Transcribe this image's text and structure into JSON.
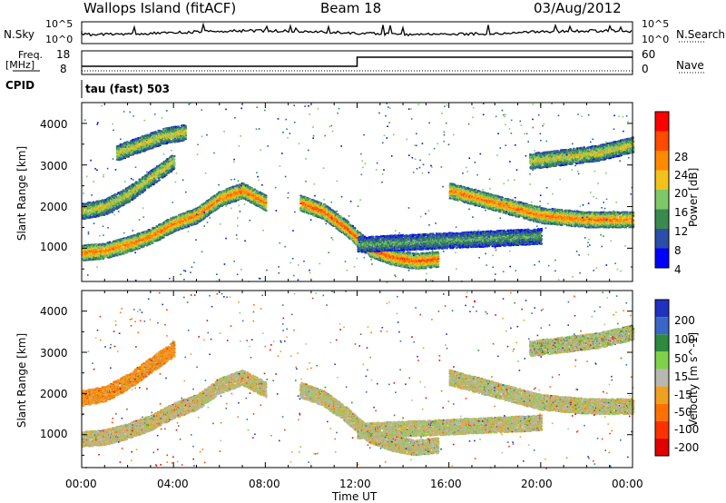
{
  "header": {
    "station": "Wallops Island (fitACF)",
    "beam": "Beam 18",
    "date": "03/Aug/2012"
  },
  "panels": {
    "nsky_label": "N.Sky",
    "nsky_ticks": [
      "10^5",
      "10^0"
    ],
    "nsearch_label": "N.Search",
    "nsearch_ticks": [
      "10^5",
      "10^0"
    ],
    "freq_label_1": "Freq.",
    "freq_label_2": "[MHz]",
    "freq_ticks": [
      "18",
      "8"
    ],
    "nave_label": "Nave",
    "nave_ticks": [
      "60",
      "0"
    ],
    "cpid_label": "CPID",
    "cpid_value": "tau (fast) 503"
  },
  "colors": {
    "power_scale": [
      "#0000ff",
      "#2b4fa8",
      "#3a8a4f",
      "#7ec86a",
      "#f2c21a",
      "#ff8a00",
      "#ff4a00",
      "#ff0000"
    ],
    "velocity_scale": [
      "#2030c0",
      "#3a66c8",
      "#2e8a3e",
      "#7ed24a",
      "#b8b8b0",
      "#f0a020",
      "#ff7000",
      "#ff3000",
      "#e00000"
    ]
  },
  "chart_data": [
    {
      "type": "heatmap",
      "title": "",
      "xlabel": "Time UT",
      "ylabel": "Slant Range [km]",
      "x_ticks": [
        "00:00",
        "04:00",
        "08:00",
        "12:00",
        "16:00",
        "20:00",
        "00:00"
      ],
      "y_ticks": [
        "1000",
        "2000",
        "3000",
        "4000"
      ],
      "xlim": [
        0,
        24
      ],
      "ylim": [
        200,
        4500
      ],
      "colorbar_label": "Power [dB]",
      "colorbar_ticks": [
        "4",
        "8",
        "12",
        "16",
        "20",
        "24",
        "28"
      ],
      "zlim": [
        0,
        32
      ],
      "features": [
        {
          "name": "band_a",
          "t": [
            0,
            1,
            2,
            3,
            4,
            5,
            6,
            7,
            8
          ],
          "range": [
            900,
            950,
            1100,
            1300,
            1600,
            1800,
            2200,
            2400,
            2100
          ],
          "power": 24
        },
        {
          "name": "band_b",
          "t": [
            0,
            1,
            2,
            3,
            4
          ],
          "range": [
            1900,
            2000,
            2300,
            2700,
            3100
          ],
          "power": 18
        },
        {
          "name": "band_c",
          "t": [
            1.5,
            2.5,
            3.5,
            4.5
          ],
          "range": [
            3300,
            3500,
            3700,
            3800
          ],
          "power": 18
        },
        {
          "name": "band_d",
          "t": [
            9.5,
            10.5,
            11.5,
            12.5,
            13.5,
            14.5,
            15.5
          ],
          "range": [
            2100,
            1900,
            1500,
            1000,
            800,
            700,
            750
          ],
          "power": 26
        },
        {
          "name": "band_e",
          "t": [
            12,
            14,
            16,
            18,
            20
          ],
          "range": [
            1100,
            1150,
            1200,
            1250,
            1300
          ],
          "power": 12
        },
        {
          "name": "band_f",
          "t": [
            16,
            18,
            20,
            22,
            24
          ],
          "range": [
            2400,
            2100,
            1800,
            1700,
            1700
          ],
          "power": 24
        },
        {
          "name": "band_g",
          "t": [
            19.5,
            21,
            22.5,
            24
          ],
          "range": [
            3100,
            3200,
            3300,
            3500
          ],
          "power": 18
        }
      ]
    },
    {
      "type": "heatmap",
      "title": "",
      "xlabel": "Time UT",
      "ylabel": "Slant Range [km]",
      "x_ticks": [
        "00:00",
        "04:00",
        "08:00",
        "12:00",
        "16:00",
        "20:00",
        "00:00"
      ],
      "y_ticks": [
        "1000",
        "2000",
        "3000",
        "4000"
      ],
      "xlim": [
        0,
        24
      ],
      "ylim": [
        200,
        4500
      ],
      "colorbar_label": "Velocity [m s^-1]",
      "colorbar_ticks": [
        "200",
        "100",
        "50",
        "15",
        "-15",
        "-50",
        "-100",
        "-200"
      ],
      "zlim": [
        -250,
        250
      ],
      "features": [
        {
          "name": "band_a",
          "t": [
            0,
            1,
            2,
            3,
            4,
            5,
            6,
            7,
            8
          ],
          "range": [
            900,
            950,
            1100,
            1300,
            1600,
            1800,
            2200,
            2400,
            2100
          ],
          "velocity": -5
        },
        {
          "name": "band_b",
          "t": [
            0,
            1,
            2,
            3,
            4
          ],
          "range": [
            1900,
            2000,
            2300,
            2700,
            3100
          ],
          "velocity": -40
        },
        {
          "name": "band_d",
          "t": [
            9.5,
            10.5,
            11.5,
            12.5,
            13.5,
            14.5,
            15.5
          ],
          "range": [
            2100,
            1900,
            1500,
            1000,
            800,
            700,
            750
          ],
          "velocity": 0
        },
        {
          "name": "band_e",
          "t": [
            12,
            14,
            16,
            18,
            20
          ],
          "range": [
            1100,
            1150,
            1200,
            1250,
            1300
          ],
          "velocity": 0
        },
        {
          "name": "band_f",
          "t": [
            16,
            18,
            20,
            22,
            24
          ],
          "range": [
            2400,
            2100,
            1800,
            1700,
            1700
          ],
          "velocity": 0
        },
        {
          "name": "band_g",
          "t": [
            19.5,
            21,
            22.5,
            24
          ],
          "range": [
            3100,
            3200,
            3300,
            3500
          ],
          "velocity": 5
        }
      ]
    }
  ]
}
